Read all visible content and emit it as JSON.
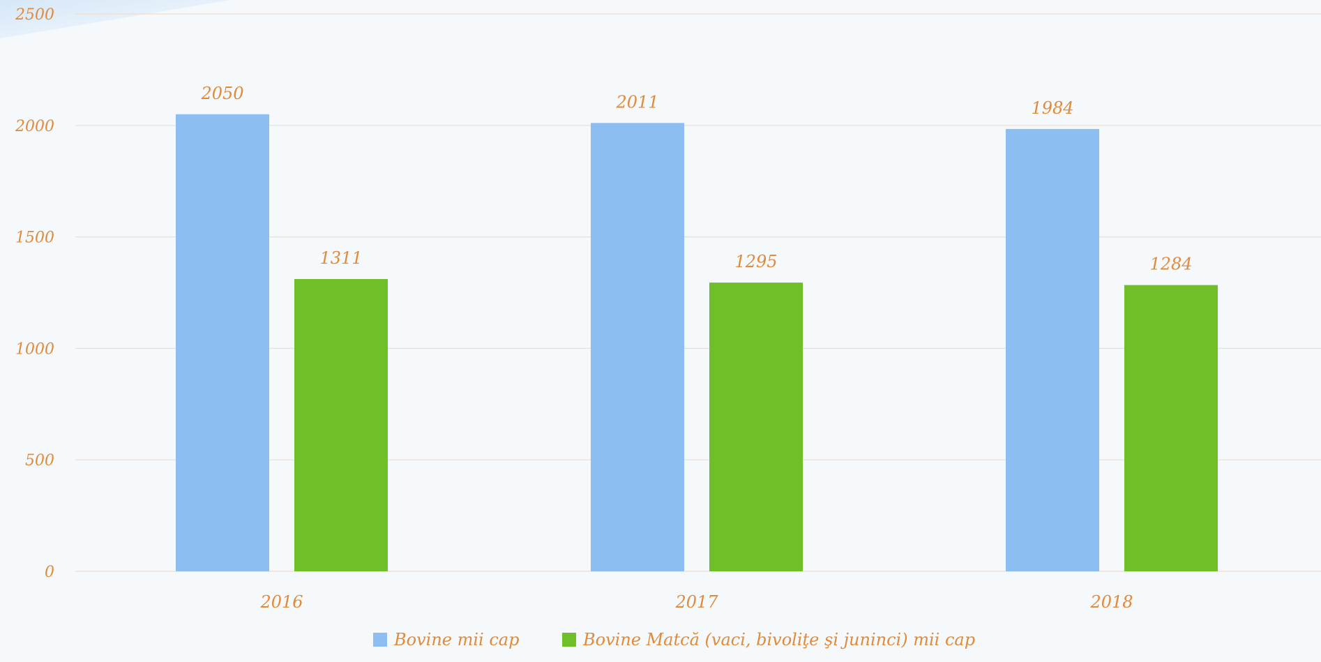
{
  "chart_data": {
    "type": "bar",
    "categories": [
      "2016",
      "2017",
      "2018"
    ],
    "series": [
      {
        "name": "Bovine mii cap",
        "values": [
          2050,
          2011,
          1984
        ],
        "color": "#8cbef1"
      },
      {
        "name": "Bovine Matcă (vaci, bivoliţe şi juninci) mii cap",
        "values": [
          1311,
          1295,
          1284
        ],
        "color": "#6fc028"
      }
    ],
    "ylim": [
      0,
      2500
    ],
    "yticks": [
      0,
      500,
      1000,
      1500,
      2000,
      2500
    ],
    "grid": true,
    "legend": "bottom",
    "label_color": "#e08a3a",
    "grid_color": "#f3dcc8"
  }
}
